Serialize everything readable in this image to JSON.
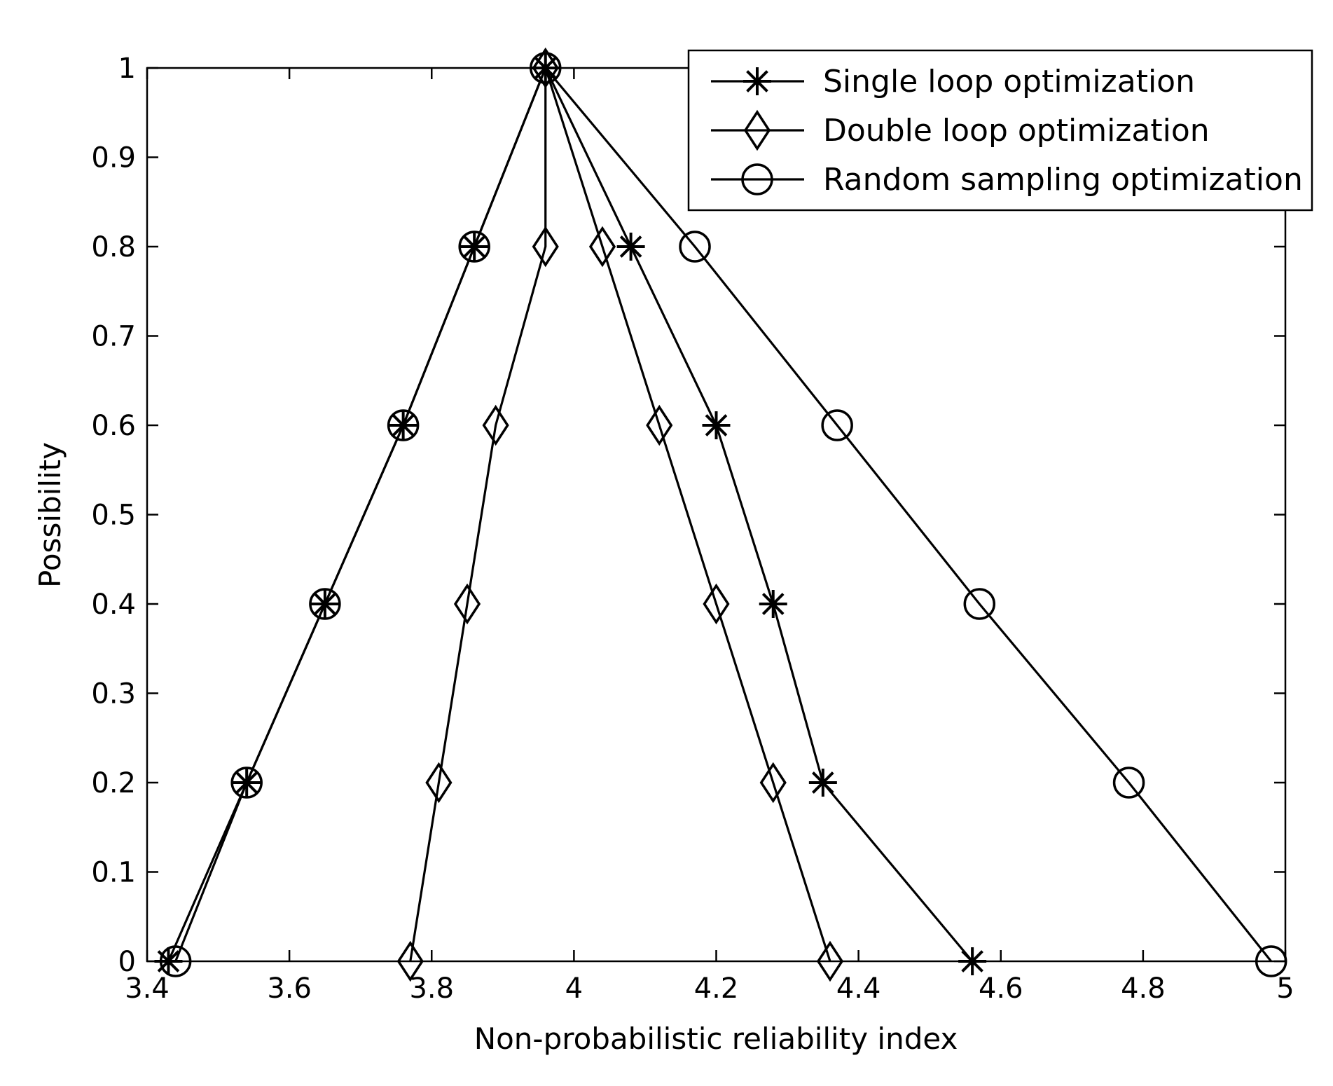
{
  "chart_data": {
    "type": "line",
    "title": "",
    "xlabel": "Non-probabilistic reliability index",
    "ylabel": "Possibility",
    "xlim": [
      3.4,
      5.0
    ],
    "ylim": [
      0,
      1
    ],
    "xticks": [
      3.4,
      3.6,
      3.8,
      4.0,
      4.2,
      4.4,
      4.6,
      4.8,
      5.0
    ],
    "xtick_labels": [
      "3.4",
      "3.6",
      "3.8",
      "4",
      "4.2",
      "4.4",
      "4.6",
      "4.8",
      "5"
    ],
    "yticks": [
      0,
      0.1,
      0.2,
      0.3,
      0.4,
      0.5,
      0.6,
      0.7,
      0.8,
      0.9,
      1.0
    ],
    "ytick_labels": [
      "0",
      "0.1",
      "0.2",
      "0.3",
      "0.4",
      "0.5",
      "0.6",
      "0.7",
      "0.8",
      "0.9",
      "1"
    ],
    "grid": false,
    "legend_position": "top-right",
    "series": [
      {
        "name": "Single loop optimization",
        "marker": "asterisk",
        "color": "#000000",
        "points": [
          [
            3.43,
            0
          ],
          [
            3.54,
            0.2
          ],
          [
            3.65,
            0.4
          ],
          [
            3.76,
            0.6
          ],
          [
            3.86,
            0.8
          ],
          [
            3.96,
            1.0
          ],
          [
            4.08,
            0.8
          ],
          [
            4.2,
            0.6
          ],
          [
            4.28,
            0.4
          ],
          [
            4.35,
            0.2
          ],
          [
            4.56,
            0
          ]
        ]
      },
      {
        "name": "Double loop optimization",
        "marker": "diamond",
        "color": "#000000",
        "points": [
          [
            3.77,
            0
          ],
          [
            3.81,
            0.2
          ],
          [
            3.85,
            0.4
          ],
          [
            3.89,
            0.6
          ],
          [
            3.96,
            0.8
          ],
          [
            3.96,
            1.0
          ],
          [
            4.04,
            0.8
          ],
          [
            4.12,
            0.6
          ],
          [
            4.2,
            0.4
          ],
          [
            4.28,
            0.2
          ],
          [
            4.36,
            0
          ]
        ]
      },
      {
        "name": "Random sampling optimization",
        "marker": "circle",
        "color": "#000000",
        "points": [
          [
            3.44,
            0
          ],
          [
            3.54,
            0.2
          ],
          [
            3.65,
            0.4
          ],
          [
            3.76,
            0.6
          ],
          [
            3.86,
            0.8
          ],
          [
            3.96,
            1.0
          ],
          [
            4.17,
            0.8
          ],
          [
            4.37,
            0.6
          ],
          [
            4.57,
            0.4
          ],
          [
            4.78,
            0.2
          ],
          [
            4.98,
            0
          ]
        ]
      }
    ]
  }
}
